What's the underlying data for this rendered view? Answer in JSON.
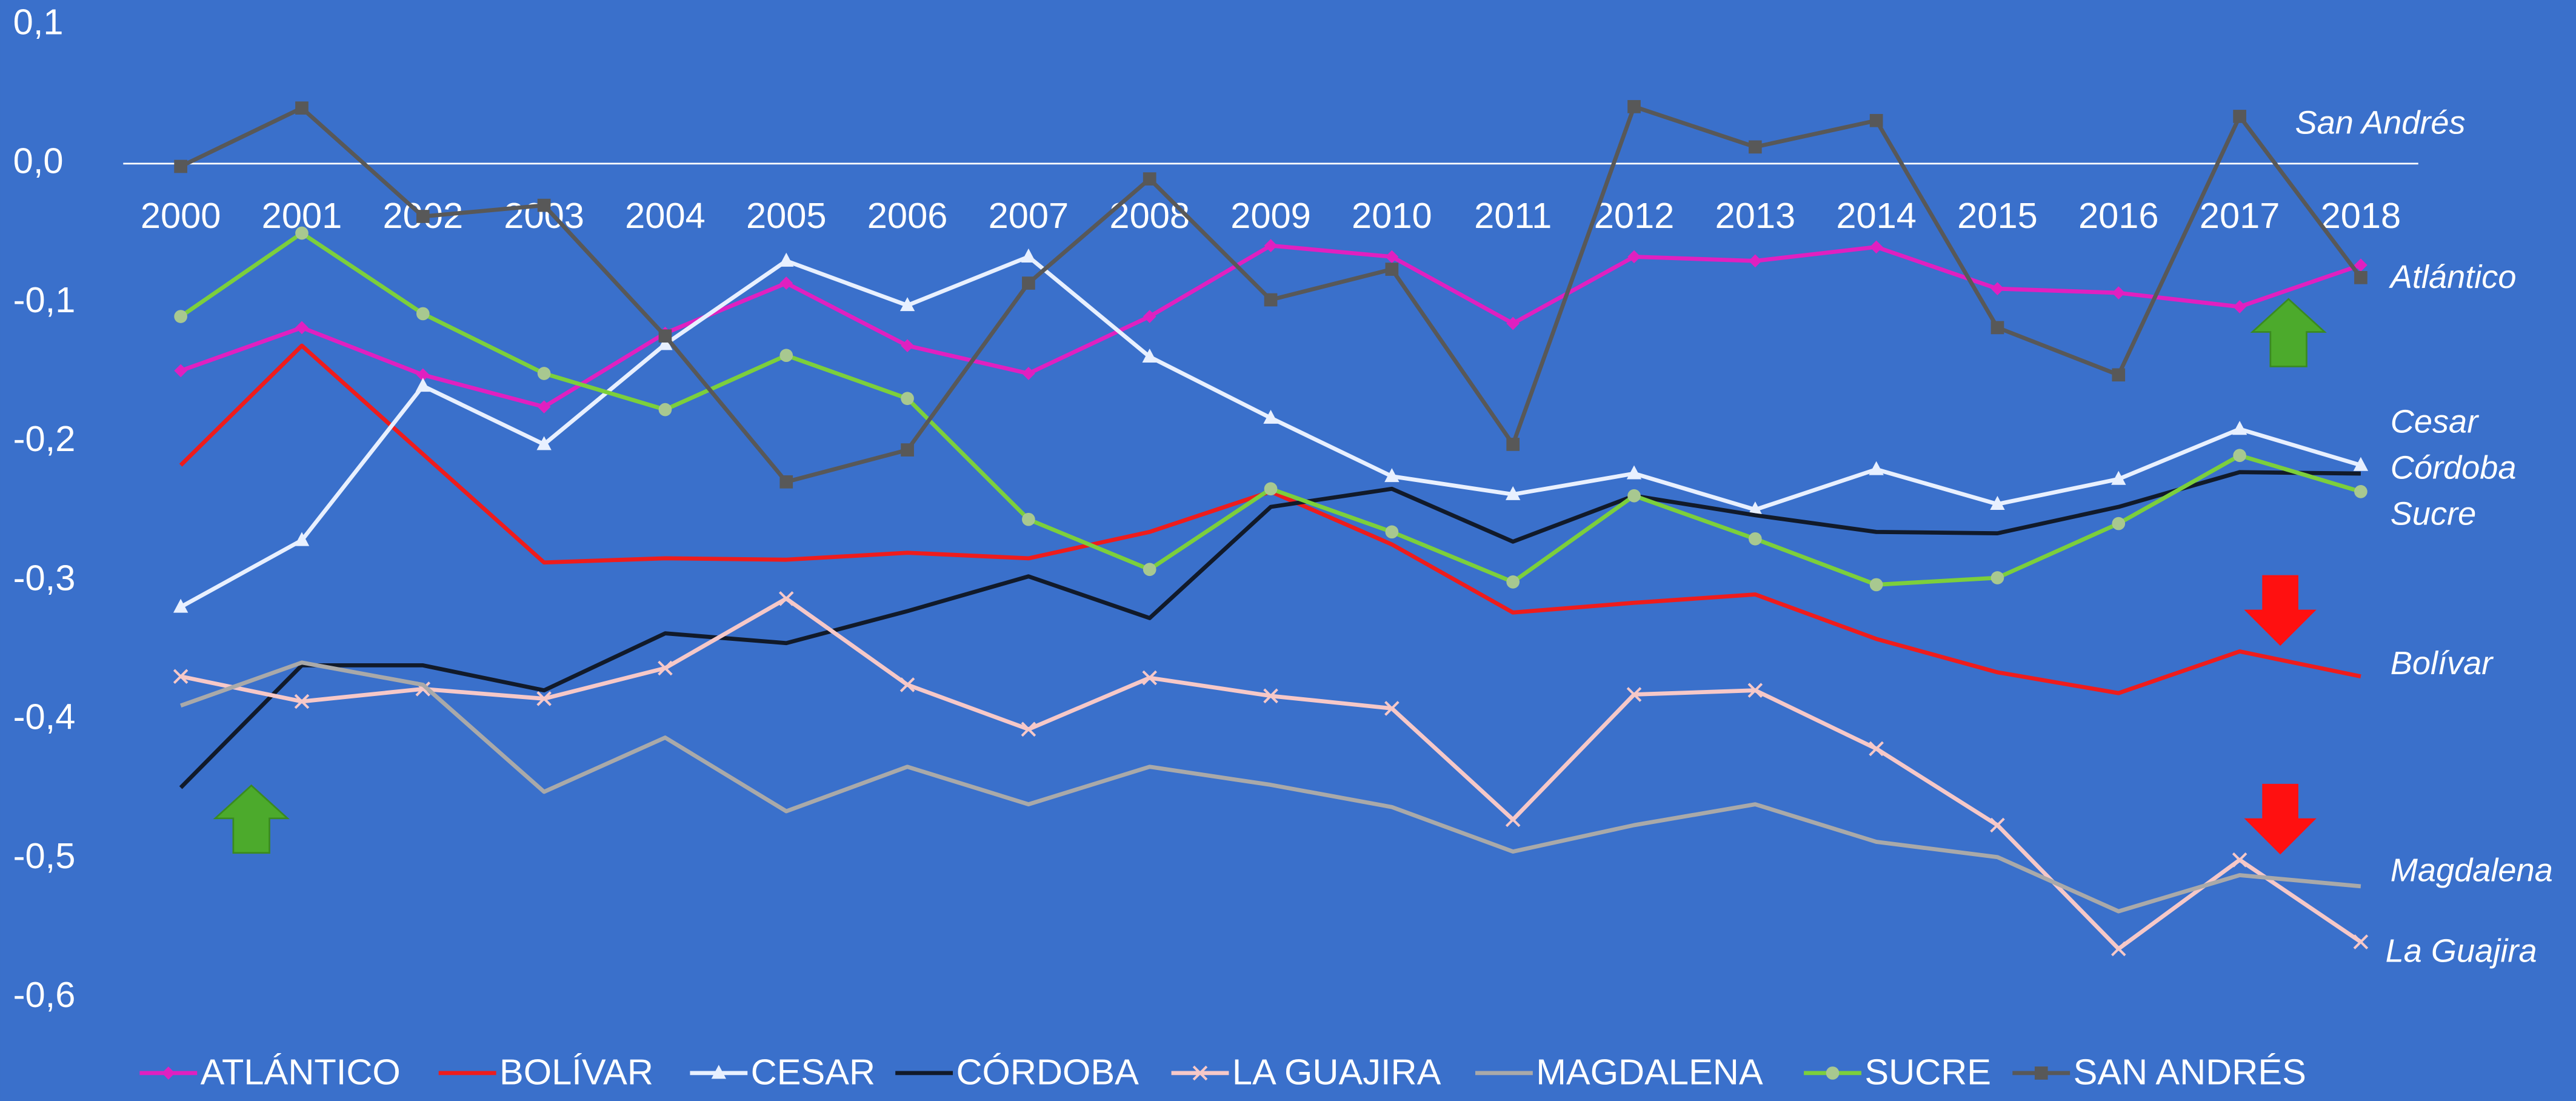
{
  "chart_data": {
    "type": "line",
    "categories": [
      "2000",
      "2001",
      "2002",
      "2003",
      "2004",
      "2005",
      "2006",
      "2007",
      "2008",
      "2009",
      "2010",
      "2011",
      "2012",
      "2013",
      "2014",
      "2015",
      "2016",
      "2017",
      "2018"
    ],
    "ylim": [
      -0.6,
      0.1
    ],
    "yticks": [
      {
        "value": 0.1,
        "label": "0,1"
      },
      {
        "value": 0,
        "label": "0,0"
      },
      {
        "value": -0.1,
        "label": "-0,1"
      },
      {
        "value": -0.2,
        "label": "-0,2"
      },
      {
        "value": -0.3,
        "label": "-0,3"
      },
      {
        "value": -0.4,
        "label": "-0,4"
      },
      {
        "value": -0.5,
        "label": "-0,5"
      },
      {
        "value": -0.6,
        "label": "-0,6"
      }
    ],
    "legend": "bottom",
    "series": [
      {
        "name": "ATLÁNTICO",
        "color": "#e020c0",
        "marker": "diamond",
        "values": [
          -0.149,
          -0.118,
          -0.152,
          -0.175,
          -0.122,
          -0.086,
          -0.131,
          -0.151,
          -0.11,
          -0.059,
          -0.067,
          -0.115,
          -0.067,
          -0.07,
          -0.06,
          -0.09,
          -0.093,
          -0.103,
          -0.073
        ]
      },
      {
        "name": "BOLÍVAR",
        "color": "#ee1c1c",
        "marker": "none",
        "values": [
          -0.217,
          -0.131,
          -0.209,
          -0.287,
          -0.284,
          -0.285,
          -0.28,
          -0.284,
          -0.265,
          -0.236,
          -0.274,
          -0.323,
          -0.316,
          -0.31,
          -0.342,
          -0.366,
          -0.381,
          -0.351,
          -0.369
        ]
      },
      {
        "name": "CESAR",
        "color": "#e8f0ff",
        "marker": "triangle",
        "values": [
          -0.319,
          -0.271,
          -0.16,
          -0.202,
          -0.13,
          -0.07,
          -0.102,
          -0.067,
          -0.139,
          -0.183,
          -0.225,
          -0.238,
          -0.223,
          -0.249,
          -0.22,
          -0.245,
          -0.227,
          -0.191,
          -0.217
        ]
      },
      {
        "name": "CÓRDOBA",
        "color": "#111a2a",
        "marker": "none",
        "values": [
          -0.449,
          -0.361,
          -0.361,
          -0.379,
          -0.338,
          -0.345,
          -0.322,
          -0.297,
          -0.327,
          -0.247,
          -0.234,
          -0.272,
          -0.239,
          -0.253,
          -0.265,
          -0.266,
          -0.247,
          -0.222,
          -0.223
        ]
      },
      {
        "name": "LA GUAJIRA",
        "color": "#f6c8c8",
        "marker": "x",
        "values": [
          -0.369,
          -0.387,
          -0.378,
          -0.385,
          -0.363,
          -0.313,
          -0.375,
          -0.407,
          -0.37,
          -0.383,
          -0.392,
          -0.472,
          -0.382,
          -0.379,
          -0.421,
          -0.476,
          -0.565,
          -0.501,
          -0.56
        ]
      },
      {
        "name": "MAGDALENA",
        "color": "#a9a9a9",
        "marker": "none",
        "values": [
          -0.39,
          -0.359,
          -0.375,
          -0.452,
          -0.413,
          -0.466,
          -0.434,
          -0.461,
          -0.434,
          -0.447,
          -0.463,
          -0.495,
          -0.476,
          -0.461,
          -0.488,
          -0.499,
          -0.538,
          -0.512,
          -0.52
        ]
      },
      {
        "name": "SUCRE",
        "color": "#7ccf3c",
        "marker": "circle",
        "values": [
          -0.11,
          -0.05,
          -0.108,
          -0.151,
          -0.177,
          -0.138,
          -0.169,
          -0.256,
          -0.292,
          -0.234,
          -0.265,
          -0.301,
          -0.239,
          -0.27,
          -0.303,
          -0.298,
          -0.259,
          -0.21,
          -0.236
        ]
      },
      {
        "name": "SAN ANDRÉS",
        "color": "#585858",
        "marker": "square",
        "values": [
          -0.002,
          0.04,
          -0.038,
          -0.03,
          -0.124,
          -0.229,
          -0.206,
          -0.086,
          -0.011,
          -0.098,
          -0.076,
          -0.202,
          0.041,
          0.012,
          0.031,
          -0.118,
          -0.152,
          0.034,
          -0.082
        ]
      }
    ],
    "annotations": [
      "San Andrés",
      "Atlántico",
      "Cesar",
      "Córdoba",
      "Sucre",
      "Bolívar",
      "Magdalena",
      "La Guajira"
    ]
  }
}
